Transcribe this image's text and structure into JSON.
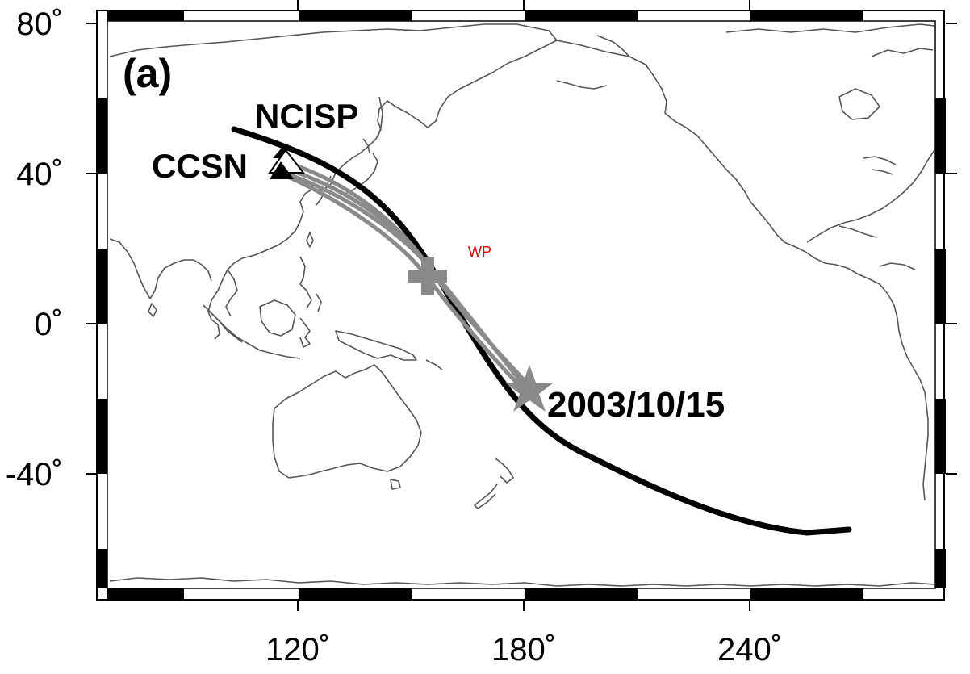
{
  "panel_label": "(a)",
  "axes": {
    "lat_ticks": [
      "80˚",
      "40˚",
      "0˚",
      "-40˚"
    ],
    "lon_ticks": [
      "120˚",
      "180˚",
      "240˚"
    ]
  },
  "stations": {
    "ncisp": "NCISP",
    "ccsn": "CCSN"
  },
  "event": {
    "date": "2003/10/15"
  },
  "markers": {
    "wp": "WP"
  },
  "colors": {
    "great_circle": "#000000",
    "ray_path": "#8a8a8a",
    "event_star": "#8a8a8a",
    "wp_text": "#dd0000",
    "coastline": "#555555"
  }
}
